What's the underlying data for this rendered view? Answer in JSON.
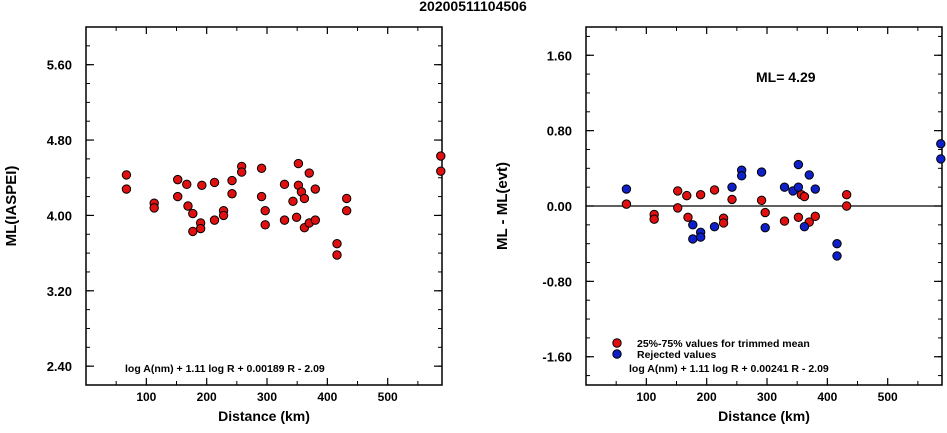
{
  "title": "20200511104506",
  "colors": {
    "accepted": "#e01010",
    "rejected": "#1020c8",
    "outline": "#000000"
  },
  "chart_data": [
    {
      "type": "scatter",
      "xlabel": "Distance (km)",
      "ylabel": "ML(IASPEI)",
      "xlim": [
        0,
        590
      ],
      "ylim": [
        2.2,
        6.0
      ],
      "xticks": [
        "100",
        "200",
        "300",
        "400",
        "500"
      ],
      "yticks": [
        "5.60",
        "4.80",
        "4.00",
        "3.20",
        "2.40"
      ],
      "formula": "log A(nm) + 1.11 log R + 0.00189 R - 2.09",
      "points": [
        {
          "x": 67,
          "y": 4.43
        },
        {
          "x": 67,
          "y": 4.28
        },
        {
          "x": 113,
          "y": 4.13
        },
        {
          "x": 113,
          "y": 4.08
        },
        {
          "x": 152,
          "y": 4.38
        },
        {
          "x": 152,
          "y": 4.2
        },
        {
          "x": 167,
          "y": 4.33
        },
        {
          "x": 169,
          "y": 4.1
        },
        {
          "x": 177,
          "y": 4.02
        },
        {
          "x": 177,
          "y": 3.83
        },
        {
          "x": 190,
          "y": 3.92
        },
        {
          "x": 190,
          "y": 3.86
        },
        {
          "x": 192,
          "y": 4.32
        },
        {
          "x": 213,
          "y": 4.35
        },
        {
          "x": 213,
          "y": 3.95
        },
        {
          "x": 228,
          "y": 4.05
        },
        {
          "x": 228,
          "y": 4.0
        },
        {
          "x": 242,
          "y": 4.37
        },
        {
          "x": 242,
          "y": 4.23
        },
        {
          "x": 258,
          "y": 4.52
        },
        {
          "x": 258,
          "y": 4.46
        },
        {
          "x": 291,
          "y": 4.5
        },
        {
          "x": 291,
          "y": 4.2
        },
        {
          "x": 297,
          "y": 4.05
        },
        {
          "x": 297,
          "y": 3.9
        },
        {
          "x": 329,
          "y": 4.33
        },
        {
          "x": 329,
          "y": 3.95
        },
        {
          "x": 343,
          "y": 4.15
        },
        {
          "x": 349,
          "y": 3.98
        },
        {
          "x": 352,
          "y": 4.55
        },
        {
          "x": 352,
          "y": 4.32
        },
        {
          "x": 357,
          "y": 4.25
        },
        {
          "x": 362,
          "y": 3.87
        },
        {
          "x": 362,
          "y": 4.18
        },
        {
          "x": 370,
          "y": 4.45
        },
        {
          "x": 370,
          "y": 3.92
        },
        {
          "x": 380,
          "y": 4.28
        },
        {
          "x": 380,
          "y": 3.95
        },
        {
          "x": 416,
          "y": 3.7
        },
        {
          "x": 416,
          "y": 3.58
        },
        {
          "x": 432,
          "y": 4.18
        },
        {
          "x": 432,
          "y": 4.05
        },
        {
          "x": 588,
          "y": 4.63
        },
        {
          "x": 588,
          "y": 4.47
        }
      ]
    },
    {
      "type": "scatter",
      "xlabel": "Distance (km)",
      "ylabel": "ML - ML(evt)",
      "xlim": [
        0,
        590
      ],
      "ylim": [
        -1.9,
        1.9
      ],
      "xticks": [
        "100",
        "200",
        "300",
        "400",
        "500"
      ],
      "yticks": [
        "1.60",
        "0.80",
        "0.00",
        "-0.80",
        "-1.60"
      ],
      "reference_line": 0.0,
      "annotation": "ML= 4.29",
      "formula": "log A(nm) + 1.11 log R + 0.00241 R - 2.09",
      "legend": [
        {
          "label": "25%-75% values for trimmed mean",
          "color_key": "accepted"
        },
        {
          "label": "Rejected values",
          "color_key": "rejected"
        }
      ],
      "series": [
        {
          "name": "25%-75% values for trimmed mean",
          "color_key": "accepted",
          "points": [
            {
              "x": 67,
              "y": 0.02
            },
            {
              "x": 113,
              "y": -0.09
            },
            {
              "x": 113,
              "y": -0.14
            },
            {
              "x": 152,
              "y": 0.16
            },
            {
              "x": 152,
              "y": -0.02
            },
            {
              "x": 167,
              "y": 0.11
            },
            {
              "x": 169,
              "y": -0.12
            },
            {
              "x": 190,
              "y": 0.12
            },
            {
              "x": 213,
              "y": 0.17
            },
            {
              "x": 228,
              "y": -0.13
            },
            {
              "x": 228,
              "y": -0.18
            },
            {
              "x": 242,
              "y": 0.07
            },
            {
              "x": 291,
              "y": 0.06
            },
            {
              "x": 297,
              "y": -0.07
            },
            {
              "x": 329,
              "y": -0.16
            },
            {
              "x": 352,
              "y": -0.12
            },
            {
              "x": 357,
              "y": 0.12
            },
            {
              "x": 362,
              "y": 0.1
            },
            {
              "x": 370,
              "y": -0.17
            },
            {
              "x": 380,
              "y": -0.11
            },
            {
              "x": 432,
              "y": 0.12
            },
            {
              "x": 432,
              "y": 0.0
            }
          ]
        },
        {
          "name": "Rejected values",
          "color_key": "rejected",
          "points": [
            {
              "x": 67,
              "y": 0.18
            },
            {
              "x": 177,
              "y": -0.2
            },
            {
              "x": 177,
              "y": -0.35
            },
            {
              "x": 190,
              "y": -0.28
            },
            {
              "x": 190,
              "y": -0.33
            },
            {
              "x": 213,
              "y": -0.22
            },
            {
              "x": 242,
              "y": 0.2
            },
            {
              "x": 258,
              "y": 0.38
            },
            {
              "x": 258,
              "y": 0.32
            },
            {
              "x": 291,
              "y": 0.36
            },
            {
              "x": 297,
              "y": -0.23
            },
            {
              "x": 329,
              "y": 0.2
            },
            {
              "x": 343,
              "y": 0.16
            },
            {
              "x": 352,
              "y": 0.44
            },
            {
              "x": 352,
              "y": 0.2
            },
            {
              "x": 362,
              "y": -0.22
            },
            {
              "x": 370,
              "y": 0.33
            },
            {
              "x": 380,
              "y": 0.18
            },
            {
              "x": 416,
              "y": -0.4
            },
            {
              "x": 416,
              "y": -0.53
            },
            {
              "x": 588,
              "y": 0.66
            },
            {
              "x": 588,
              "y": 0.5
            }
          ]
        }
      ]
    }
  ]
}
